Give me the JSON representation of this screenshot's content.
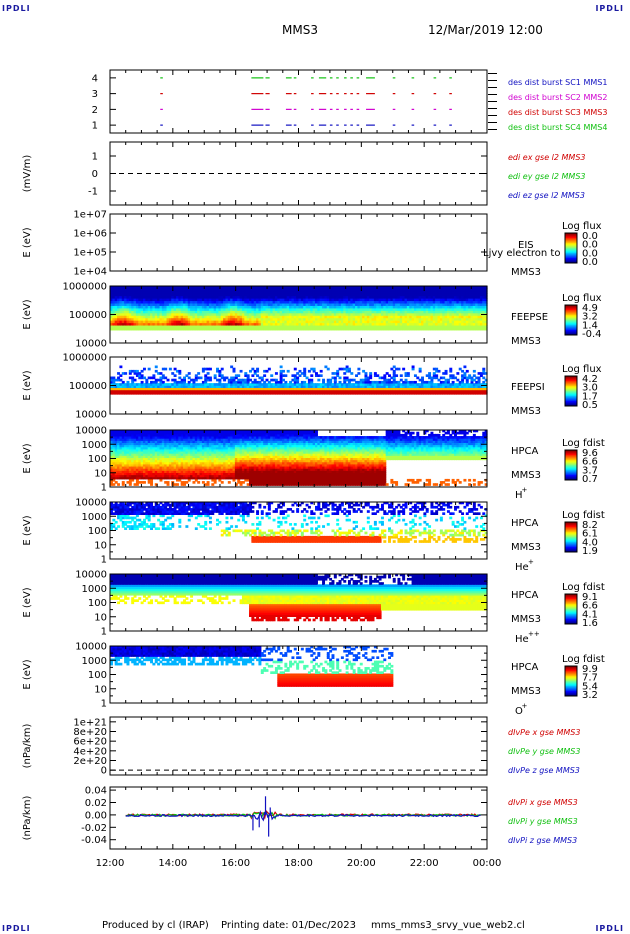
{
  "corner_labels": [
    "IPDLI",
    "IPDLI",
    "IPDLI",
    "IPDLI"
  ],
  "header": {
    "satellite": "MMS3",
    "datetime": "12/Mar/2019 12:00"
  },
  "footer": {
    "produced_by": "Produced by cl (IRAP)",
    "printing_date": "Printing date: 01/Dec/2023",
    "script_name": "mms_mms3_srvy_vue_web2.cl"
  },
  "colors": {
    "blue": "#1010c0",
    "magenta": "#d000d0",
    "red": "#d00000",
    "green": "#10c010"
  },
  "chart_data": [
    {
      "type": "line",
      "panel": "burst_availability",
      "yticks": [
        "1",
        "2",
        "3",
        "4"
      ],
      "ylim": [
        0.5,
        4.5
      ],
      "series": [
        {
          "name": "des dist burst SC1 MMS1",
          "color": "#1010c0",
          "level": 1
        },
        {
          "name": "des dist burst SC2 MMS2",
          "color": "#d000d0",
          "level": 2
        },
        {
          "name": "des dist burst SC3 MMS3",
          "color": "#d00000",
          "level": 3
        },
        {
          "name": "des dist burst SC4 MMS4",
          "color": "#10c010",
          "level": 4
        }
      ],
      "segments_hours": [
        [
          13.6,
          13.65
        ],
        [
          16.5,
          16.85
        ],
        [
          16.95,
          17.05
        ],
        [
          17.6,
          17.75
        ],
        [
          17.85,
          17.9
        ],
        [
          18.4,
          18.45
        ],
        [
          18.65,
          18.85
        ],
        [
          19.0,
          19.05
        ],
        [
          19.2,
          19.25
        ],
        [
          19.45,
          19.5
        ],
        [
          19.65,
          19.7
        ],
        [
          19.85,
          19.9
        ],
        [
          20.15,
          20.4
        ],
        [
          21.0,
          21.05
        ],
        [
          21.6,
          21.65
        ],
        [
          22.3,
          22.35
        ],
        [
          22.8,
          22.85
        ]
      ]
    },
    {
      "type": "line",
      "panel": "edi_electric_field",
      "ylabel": "(mV/m)",
      "yticks": [
        "-1",
        "0",
        "1"
      ],
      "ylim": [
        -1.8,
        1.8
      ],
      "series": [
        {
          "name": "edi ex gse l2 MMS3",
          "color": "#d00000"
        },
        {
          "name": "edi ey gse l2 MMS3",
          "color": "#10c010"
        },
        {
          "name": "edi ez gse l2 MMS3",
          "color": "#1010c0"
        }
      ],
      "reference_line": 0
    },
    {
      "type": "heatmap",
      "panel": "eis",
      "ylabel": "E (eV)",
      "yticks": [
        "1e+04",
        "1e+05",
        "1e+06",
        "1e+07"
      ],
      "labels": [
        "EIS",
        "MMS3"
      ],
      "overlay_text": "Ljvy electron to",
      "colorbar_title": "Log flux",
      "colorbar_ticks": [
        "0.0",
        "0.0",
        "0.0",
        "0.0"
      ],
      "data_extent_hours": null
    },
    {
      "type": "heatmap",
      "panel": "feeps_electron",
      "ylabel": "E (eV)",
      "yticks": [
        "10000",
        "100000",
        "1000000"
      ],
      "labels": [
        "FEEPSE",
        "MMS3"
      ],
      "colorbar_title": "Log flux",
      "colorbar_ticks": [
        "4.9",
        "3.2",
        "1.4",
        "-0.4"
      ],
      "data_extent_hours": [
        12.0,
        24.0
      ],
      "energy_band_log": [
        4.35,
        6.1
      ]
    },
    {
      "type": "heatmap",
      "panel": "feeps_ion",
      "ylabel": "E (eV)",
      "yticks": [
        "10000",
        "100000",
        "1000000"
      ],
      "labels": [
        "FEEPSI",
        "MMS3"
      ],
      "colorbar_title": "Log flux",
      "colorbar_ticks": [
        "4.2",
        "3.0",
        "1.7",
        "0.5"
      ],
      "data_extent_hours": [
        12.0,
        24.0
      ],
      "energy_band_log": [
        4.85,
        5.95
      ]
    },
    {
      "type": "heatmap",
      "panel": "hpca_h_plus",
      "ylabel": "E (eV)",
      "yticks": [
        "1",
        "10",
        "100",
        "1000",
        "10000"
      ],
      "labels": [
        "HPCA",
        "MMS3",
        "H"
      ],
      "species_charge": "+",
      "colorbar_title": "Log fdist",
      "colorbar_ticks": [
        "9.6",
        "6.6",
        "3.7",
        "0.7"
      ],
      "data_extent_hours": [
        12.0,
        24.0
      ]
    },
    {
      "type": "heatmap",
      "panel": "hpca_he_plus",
      "ylabel": "E (eV)",
      "yticks": [
        "1",
        "10",
        "100",
        "1000",
        "10000"
      ],
      "labels": [
        "HPCA",
        "MMS3",
        "He"
      ],
      "species_charge": "+",
      "colorbar_title": "Log fdist",
      "colorbar_ticks": [
        "8.2",
        "6.1",
        "4.0",
        "1.9"
      ],
      "data_extent_hours": [
        12.0,
        24.0
      ]
    },
    {
      "type": "heatmap",
      "panel": "hpca_he_plus_plus",
      "ylabel": "E (eV)",
      "yticks": [
        "1",
        "10",
        "100",
        "1000",
        "10000"
      ],
      "labels": [
        "HPCA",
        "MMS3",
        "He"
      ],
      "species_charge": "++",
      "colorbar_title": "Log fdist",
      "colorbar_ticks": [
        "9.1",
        "6.6",
        "4.1",
        "1.6"
      ],
      "data_extent_hours": [
        12.0,
        24.0
      ]
    },
    {
      "type": "heatmap",
      "panel": "hpca_o_plus",
      "ylabel": "E (eV)",
      "yticks": [
        "1",
        "10",
        "100",
        "1000",
        "10000"
      ],
      "labels": [
        "HPCA",
        "MMS3",
        "O"
      ],
      "species_charge": "+",
      "colorbar_title": "Log fdist",
      "colorbar_ticks": [
        "9.9",
        "7.7",
        "5.4",
        "3.2"
      ],
      "data_extent_hours": [
        12.0,
        21.0
      ]
    },
    {
      "type": "line",
      "panel": "electron_pressure_gradient",
      "ylabel": "(nPa/km)",
      "yticks": [
        "0",
        "2e+20",
        "4e+20",
        "6e+20",
        "8e+20",
        "1e+21"
      ],
      "ylim": [
        -1e+20,
        1.1e+21
      ],
      "series": [
        {
          "name": "dIvPe x gse MMS3",
          "color": "#d00000"
        },
        {
          "name": "dIvPe y gse MMS3",
          "color": "#10c010"
        },
        {
          "name": "dIvPe z gse MMS3",
          "color": "#1010c0"
        }
      ],
      "reference_line": 0
    },
    {
      "type": "line",
      "panel": "ion_pressure_gradient",
      "ylabel": "(nPa/km)",
      "yticks": [
        "-0.04",
        "-0.02",
        "0.00",
        "0.02",
        "0.04"
      ],
      "ylim": [
        -0.055,
        0.045
      ],
      "series": [
        {
          "name": "dIvPi x gse MMS3",
          "color": "#d00000"
        },
        {
          "name": "dIvPi y gse MMS3",
          "color": "#10c010"
        },
        {
          "name": "dIvPi z gse MMS3",
          "color": "#1010c0"
        }
      ],
      "x_range_hours": [
        12.5,
        23.8
      ],
      "spikes": [
        {
          "x": 16.55,
          "y": -0.025
        },
        {
          "x": 16.75,
          "y": -0.02
        },
        {
          "x": 16.95,
          "y": 0.03
        },
        {
          "x": 17.05,
          "y": -0.035
        },
        {
          "x": 17.1,
          "y": 0.012
        }
      ]
    }
  ],
  "x_axis": {
    "tick_labels": [
      "12:00",
      "14:00",
      "16:00",
      "18:00",
      "20:00",
      "22:00",
      "00:00"
    ],
    "range_hours": [
      12,
      24
    ]
  }
}
